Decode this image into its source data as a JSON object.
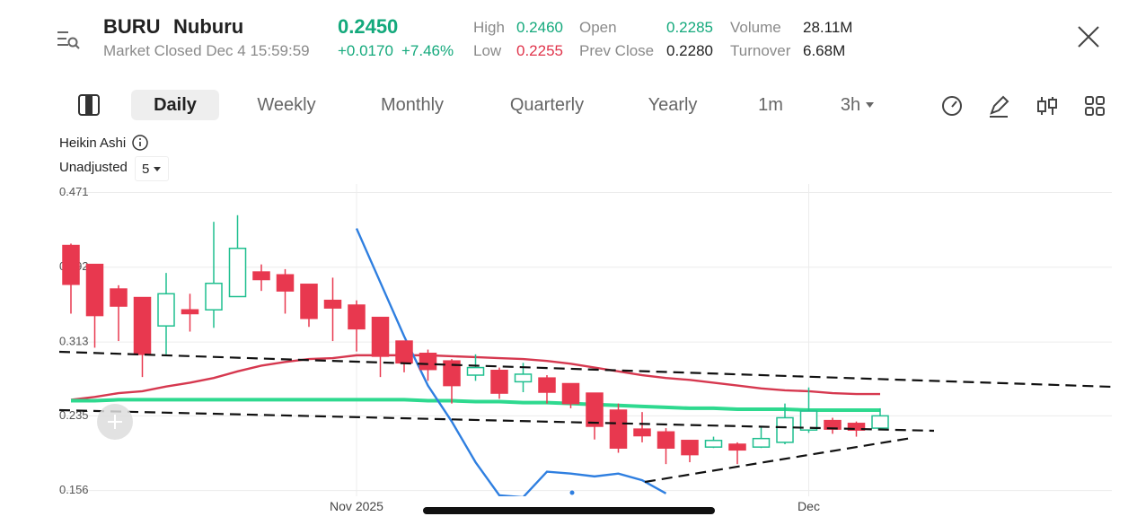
{
  "header": {
    "symbol": "BURU",
    "name": "Nuburu",
    "price": "0.2450",
    "status": "Market Closed Dec 4 15:59:59",
    "change": "+0.0170",
    "change_pct": "+7.46%",
    "stats": [
      {
        "label": "High",
        "value": "0.2460"
      },
      {
        "label": "Low",
        "value": "0.2255"
      },
      {
        "label": "Open",
        "value": "0.2285"
      },
      {
        "label": "Prev Close",
        "value": "0.2280"
      },
      {
        "label": "Volume",
        "value": "28.11M"
      },
      {
        "label": "Turnover",
        "value": "6.68M"
      }
    ]
  },
  "toolbar": {
    "tabs": [
      "Daily",
      "Weekly",
      "Monthly",
      "Quarterly",
      "Yearly",
      "1m",
      "3h"
    ]
  },
  "indicators": {
    "chart_style": "Heikin Ashi",
    "adjustment": "Unadjusted",
    "period": "5"
  },
  "chart_data": {
    "type": "candlestick",
    "up_color": "#1fbf8f",
    "down_color": "#e8384f",
    "grid": true,
    "categories": [
      null,
      null,
      null,
      null,
      null,
      null,
      null,
      null,
      null,
      null,
      null,
      null,
      "Nov 2025",
      null,
      null,
      null,
      null,
      null,
      null,
      null,
      null,
      null,
      null,
      null,
      null,
      null,
      null,
      null,
      null,
      null,
      null,
      "Dec",
      null,
      null,
      null
    ],
    "open": [
      0.415,
      0.395,
      0.369,
      0.36,
      0.33,
      0.347,
      0.347,
      0.361,
      0.387,
      0.384,
      0.374,
      0.357,
      0.352,
      0.339,
      0.314,
      0.301,
      0.293,
      0.278,
      0.283,
      0.271,
      0.275,
      0.269,
      0.259,
      0.241,
      0.221,
      0.218,
      0.209,
      0.202,
      0.205,
      0.202,
      0.207,
      0.22,
      0.23,
      0.227,
      0.222
    ],
    "high": [
      0.417,
      0.395,
      0.373,
      0.36,
      0.386,
      0.364,
      0.44,
      0.447,
      0.395,
      0.39,
      0.374,
      0.381,
      0.357,
      0.339,
      0.314,
      0.305,
      0.295,
      0.3,
      0.286,
      0.291,
      0.278,
      0.269,
      0.259,
      0.248,
      0.239,
      0.222,
      0.209,
      0.213,
      0.207,
      0.223,
      0.248,
      0.265,
      0.233,
      0.229,
      0.243
    ],
    "low": [
      0.343,
      0.307,
      0.314,
      0.276,
      0.3,
      0.324,
      0.328,
      0.361,
      0.367,
      0.343,
      0.329,
      0.314,
      0.303,
      0.276,
      0.281,
      0.272,
      0.248,
      0.272,
      0.253,
      0.26,
      0.248,
      0.243,
      0.21,
      0.196,
      0.207,
      0.184,
      0.186,
      0.201,
      0.184,
      0.201,
      0.205,
      0.217,
      0.216,
      0.213,
      0.221
    ],
    "close": [
      0.374,
      0.341,
      0.351,
      0.3,
      0.364,
      0.343,
      0.375,
      0.412,
      0.379,
      0.367,
      0.338,
      0.349,
      0.327,
      0.298,
      0.291,
      0.284,
      0.267,
      0.286,
      0.259,
      0.279,
      0.26,
      0.248,
      0.224,
      0.201,
      0.214,
      0.201,
      0.194,
      0.209,
      0.199,
      0.211,
      0.233,
      0.24,
      0.221,
      0.22,
      0.235
    ],
    "lines": [
      {
        "color": "#d6384f",
        "values": [
          0.252,
          0.255,
          0.259,
          0.261,
          0.266,
          0.27,
          0.275,
          0.282,
          0.288,
          0.292,
          0.295,
          0.296,
          0.299,
          0.299,
          0.299,
          0.299,
          0.298,
          0.297,
          0.296,
          0.295,
          0.293,
          0.29,
          0.286,
          0.282,
          0.278,
          0.275,
          0.273,
          0.27,
          0.267,
          0.264,
          0.262,
          0.261,
          0.259,
          0.258,
          0.258
        ]
      },
      {
        "color": "#2ed98f",
        "values": [
          0.251,
          0.251,
          0.252,
          0.252,
          0.252,
          0.252,
          0.252,
          0.252,
          0.252,
          0.252,
          0.252,
          0.252,
          0.252,
          0.252,
          0.252,
          0.251,
          0.251,
          0.25,
          0.25,
          0.249,
          0.249,
          0.248,
          0.247,
          0.246,
          0.245,
          0.244,
          0.243,
          0.243,
          0.242,
          0.242,
          0.242,
          0.241,
          0.241,
          0.241,
          0.241
        ]
      },
      {
        "color": "#2f7fe0",
        "values": [
          null,
          null,
          null,
          null,
          null,
          null,
          null,
          null,
          null,
          null,
          null,
          null,
          0.433,
          0.376,
          0.319,
          0.267,
          0.229,
          0.186,
          0.151,
          0.149,
          0.176,
          0.174,
          0.171,
          0.174,
          0.167,
          0.153,
          null,
          null,
          null,
          null,
          null,
          null,
          null,
          null,
          null
        ]
      }
    ],
    "ylim": [
      0.15,
      0.48
    ],
    "yticks": [
      0.471,
      0.392,
      0.313,
      0.235,
      0.156
    ]
  }
}
